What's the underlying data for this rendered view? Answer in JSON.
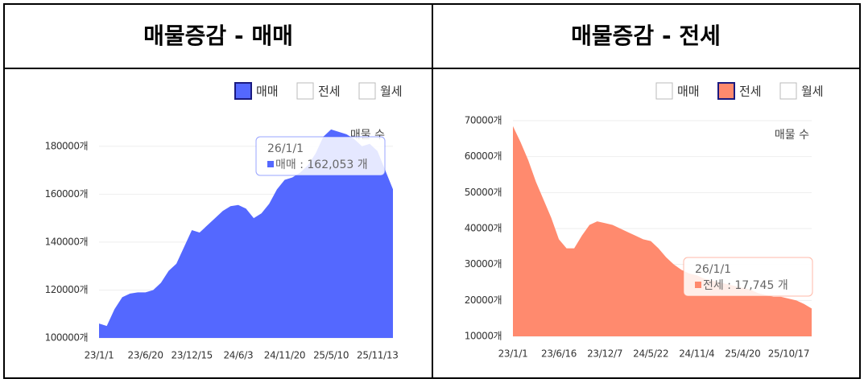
{
  "chart_data": [
    {
      "type": "area",
      "title": "매물증감 - 매매",
      "annotation": "매물 수",
      "legend": [
        {
          "label": "매매",
          "checked": true
        },
        {
          "label": "전세",
          "checked": false
        },
        {
          "label": "월세",
          "checked": false
        }
      ],
      "categories": [
        "23/1/1",
        null,
        null,
        null,
        null,
        null,
        "23/6/20",
        null,
        null,
        null,
        null,
        null,
        "23/12/15",
        null,
        null,
        null,
        null,
        null,
        "24/6/3",
        null,
        null,
        null,
        null,
        null,
        "24/11/20",
        null,
        null,
        null,
        null,
        null,
        "25/5/10",
        null,
        null,
        null,
        null,
        null,
        "25/11/13",
        null,
        null
      ],
      "series": [
        {
          "color": "#5468ff",
          "values": [
            106000,
            105000,
            112000,
            117000,
            118500,
            119000,
            119000,
            120000,
            123000,
            128000,
            131000,
            138000,
            145000,
            144000,
            147000,
            150000,
            153000,
            155000,
            155500,
            154000,
            150000,
            152000,
            156000,
            162000,
            166000,
            167000,
            169000,
            172000,
            177000,
            184000,
            187000,
            186000,
            185000,
            183000,
            180000,
            181000,
            178000,
            170000,
            162053
          ]
        }
      ],
      "ylim": [
        100000,
        190000
      ],
      "yticks": [
        {
          "value": 100000,
          "label": "100000개"
        },
        {
          "value": 120000,
          "label": "120000개"
        },
        {
          "value": 140000,
          "label": "140000개"
        },
        {
          "value": 160000,
          "label": "160000개"
        },
        {
          "value": 180000,
          "label": "180000개"
        }
      ],
      "grid": true,
      "tooltip": {
        "title": "26/1/1",
        "text": "매매 : 162,053 개"
      }
    },
    {
      "type": "area",
      "title": "매물증감 - 전세",
      "annotation": "매물 수",
      "legend": [
        {
          "label": "매매",
          "checked": false
        },
        {
          "label": "전세",
          "checked": true
        },
        {
          "label": "월세",
          "checked": false
        }
      ],
      "categories": [
        "23/1/1",
        null,
        null,
        null,
        null,
        null,
        "23/6/16",
        null,
        null,
        null,
        null,
        null,
        "23/12/7",
        null,
        null,
        null,
        null,
        null,
        "24/5/22",
        null,
        null,
        null,
        null,
        null,
        "24/11/4",
        null,
        null,
        null,
        null,
        null,
        "25/4/20",
        null,
        null,
        null,
        null,
        null,
        "25/10/17",
        null,
        null,
        null
      ],
      "series": [
        {
          "color": "#ff8a6e",
          "values": [
            68500,
            64000,
            59000,
            53000,
            48000,
            43000,
            37000,
            34500,
            34500,
            38000,
            41000,
            42000,
            41500,
            41000,
            40000,
            39000,
            38000,
            37000,
            36500,
            34500,
            32000,
            30000,
            28500,
            27500,
            27000,
            26000,
            25500,
            25000,
            24500,
            24000,
            23500,
            23000,
            22000,
            21500,
            21000,
            21000,
            20500,
            20000,
            19000,
            17745
          ]
        }
      ],
      "ylim": [
        10000,
        70000
      ],
      "yticks": [
        {
          "value": 10000,
          "label": "10000개"
        },
        {
          "value": 20000,
          "label": "20000개"
        },
        {
          "value": 30000,
          "label": "30000개"
        },
        {
          "value": 40000,
          "label": "40000개"
        },
        {
          "value": 50000,
          "label": "50000개"
        },
        {
          "value": 60000,
          "label": "60000개"
        },
        {
          "value": 70000,
          "label": "70000개"
        }
      ],
      "grid": true,
      "tooltip": {
        "title": "26/1/1",
        "text": "전세 : 17,745 개"
      }
    }
  ]
}
